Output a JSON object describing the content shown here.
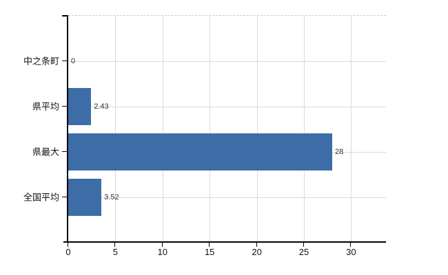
{
  "chart_data": {
    "type": "bar",
    "orientation": "horizontal",
    "title": "",
    "xlabel": "",
    "ylabel": "",
    "categories": [
      "中之条町",
      "県平均",
      "県最大",
      "全国平均"
    ],
    "values": [
      0,
      2.43,
      28,
      3.52
    ],
    "value_labels": [
      "0",
      "2.43",
      "28",
      "3.52"
    ],
    "xticks": [
      0,
      5,
      10,
      15,
      20,
      25,
      30
    ],
    "xtick_labels": [
      "0",
      "5",
      "10",
      "15",
      "20",
      "25",
      "30"
    ],
    "xlim": [
      0,
      33.7
    ],
    "grid": true,
    "legend": false,
    "bar_color": "#3d6da6",
    "gridline_color": "#d9d9d9",
    "plot_border_color": "#c9c9c9",
    "axis_color": "#000000",
    "text_color": "#111111",
    "value_label_color": "#303030",
    "background_color": "#ffffff"
  }
}
